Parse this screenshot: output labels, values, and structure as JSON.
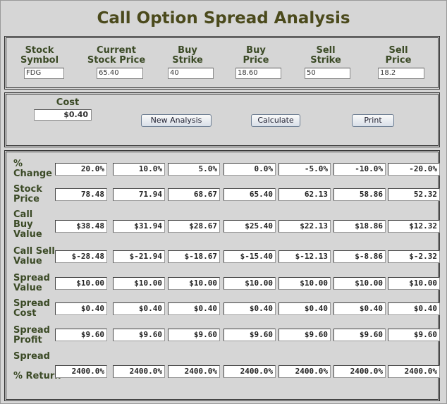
{
  "header": {
    "title": "Call Option Spread Analysis"
  },
  "inputs": [
    {
      "label": "Stock\nSymbol",
      "value": "FDG"
    },
    {
      "label": "Current\nStock Price",
      "value": "65.40"
    },
    {
      "label": "Buy\nStrike",
      "value": "40"
    },
    {
      "label": "Buy\nPrice",
      "value": "18.60"
    },
    {
      "label": "Sell\nStrike",
      "value": "50"
    },
    {
      "label": "Sell\nPrice",
      "value": "18.2"
    }
  ],
  "cost": {
    "label": "Cost",
    "value": "$0.40"
  },
  "buttons": [
    "New Analysis",
    "Calculate",
    "Print"
  ],
  "table": {
    "rows": [
      {
        "label": "%\nChange",
        "values": [
          "20.0%",
          "10.0%",
          "5.0%",
          "0.0%",
          "-5.0%",
          "-10.0%",
          "-20.0%"
        ]
      },
      {
        "label": "Stock\nPrice",
        "values": [
          "78.48",
          "71.94",
          "68.67",
          "65.40",
          "62.13",
          "58.86",
          "52.32"
        ]
      },
      {
        "label": "Call\nBuy\nValue",
        "values": [
          "$38.48",
          "$31.94",
          "$28.67",
          "$25.40",
          "$22.13",
          "$18.86",
          "$12.32"
        ]
      },
      {
        "label": "Call Sell\nValue",
        "values": [
          "$-28.48",
          "$-21.94",
          "$-18.67",
          "$-15.40",
          "$-12.13",
          "$-8.86",
          "$-2.32"
        ]
      },
      {
        "label": "Spread\nValue",
        "values": [
          "$10.00",
          "$10.00",
          "$10.00",
          "$10.00",
          "$10.00",
          "$10.00",
          "$10.00"
        ]
      },
      {
        "label": "Spread\nCost",
        "values": [
          "$0.40",
          "$0.40",
          "$0.40",
          "$0.40",
          "$0.40",
          "$0.40",
          "$0.40"
        ]
      },
      {
        "label": "Spread\nProfit",
        "values": [
          "$9.60",
          "$9.60",
          "$9.60",
          "$9.60",
          "$9.60",
          "$9.60",
          "$9.60"
        ]
      },
      {
        "label": "Spread\n\n% Return",
        "values": [
          "2400.0%",
          "2400.0%",
          "2400.0%",
          "2400.0%",
          "2400.0%",
          "2400.0%",
          "2400.0%"
        ]
      }
    ]
  }
}
